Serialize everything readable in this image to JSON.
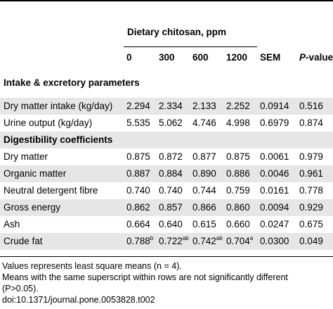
{
  "header": {
    "group_label": "Dietary chitosan, ppm",
    "columns": [
      "0",
      "300",
      "600",
      "1200",
      "SEM"
    ],
    "pvalue_prefix": "P",
    "pvalue_suffix": "-value"
  },
  "sections": [
    {
      "title": "Intake & excretory parameters",
      "rows": [
        {
          "label": "Dry matter intake (kg/day)",
          "values": [
            "2.294",
            "2.334",
            "2.133",
            "2.252",
            "0.0914",
            "0.516"
          ]
        },
        {
          "label": "Urine output (kg/day)",
          "values": [
            "5.535",
            "5.062",
            "4.746",
            "4.998",
            "0.6979",
            "0.874"
          ]
        }
      ]
    },
    {
      "title": "Digestibility coefficients",
      "rows": [
        {
          "label": "Dry matter",
          "values": [
            "0.875",
            "0.872",
            "0.877",
            "0.875",
            "0.0061",
            "0.979"
          ]
        },
        {
          "label": "Organic matter",
          "values": [
            "0.887",
            "0.884",
            "0.890",
            "0.886",
            "0.0046",
            "0.961"
          ]
        },
        {
          "label": "Neutral detergent fibre",
          "values": [
            "0.740",
            "0.740",
            "0.744",
            "0.759",
            "0.0161",
            "0.778"
          ]
        },
        {
          "label": "Gross energy",
          "values": [
            "0.862",
            "0.857",
            "0.866",
            "0.860",
            "0.0094",
            "0.929"
          ]
        },
        {
          "label": "Ash",
          "values": [
            "0.664",
            "0.640",
            "0.615",
            "0.660",
            "0.0247",
            "0.675"
          ]
        }
      ]
    }
  ],
  "crude_fat": {
    "label": "Crude fat",
    "values": [
      "0.788",
      "0.722",
      "0.742",
      "0.704",
      "0.0300",
      "0.049"
    ],
    "sups": [
      "b",
      "ab",
      "ab",
      "a"
    ]
  },
  "notes": [
    "Values represents least square means (n = 4).",
    "Means with the same superscript within rows are not significantly different",
    "(P>0.05).",
    "doi:10.1371/journal.pone.0053828.t002"
  ]
}
